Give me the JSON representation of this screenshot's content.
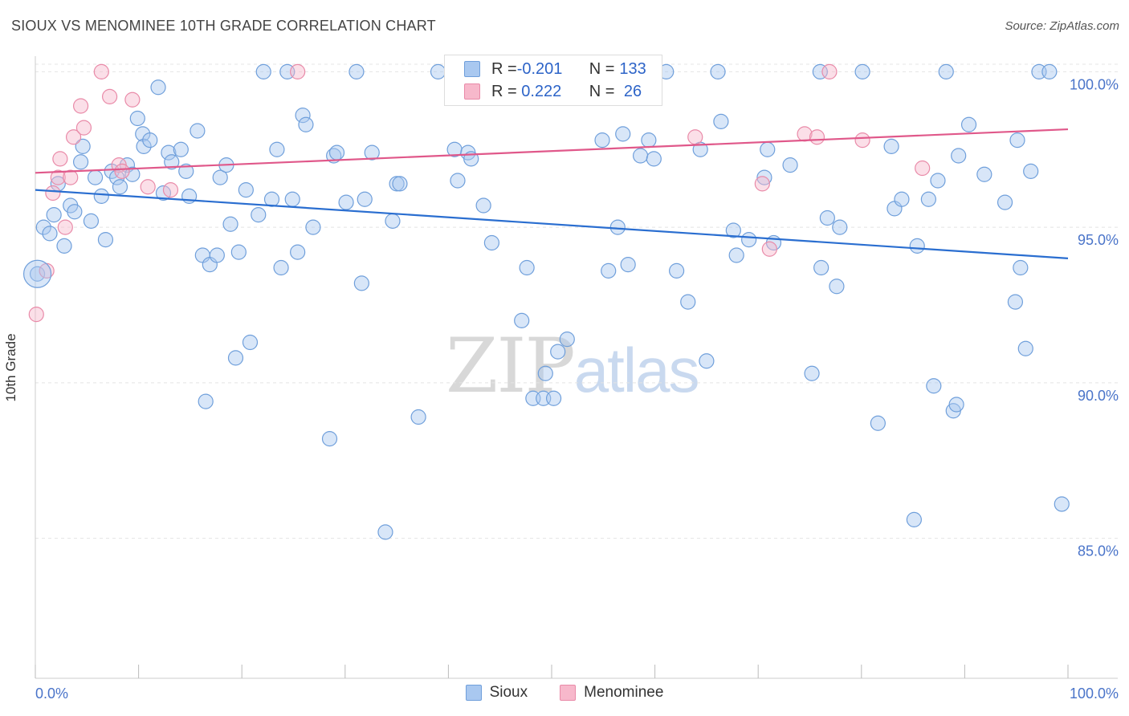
{
  "header": {
    "title": "SIOUX VS MENOMINEE 10TH GRADE CORRELATION CHART",
    "source": "Source: ZipAtlas.com"
  },
  "watermark": {
    "zip": "ZIP",
    "atlas": "atlas"
  },
  "legend": {
    "rows": [
      {
        "r_label": "R = ",
        "r_value": "-0.201",
        "n_label": "N = ",
        "n_value": "133",
        "color": "#a9c8f0"
      },
      {
        "r_label": "R = ",
        "r_value": " 0.222",
        "n_label": "N = ",
        "n_value": " 26",
        "color": "#f7b8cb"
      }
    ]
  },
  "colors": {
    "sioux_fill": "#a9c8f0",
    "sioux_stroke": "#6f9fdb",
    "sioux_line": "#2a6ed0",
    "menominee_fill": "#f7b8cb",
    "menominee_stroke": "#e98aa8",
    "menominee_line": "#e0588a",
    "axis_text": "#4a74c9",
    "grid": "#e4e4e4"
  },
  "chart_data": {
    "type": "scatter",
    "title": "SIOUX VS MENOMINEE 10TH GRADE CORRELATION CHART",
    "xlabel": "",
    "ylabel": "10th Grade",
    "xlim": [
      0,
      100
    ],
    "ylim": [
      80.5,
      100.5
    ],
    "x_tick_labels": [
      "0.0%",
      "100.0%"
    ],
    "y_ticks": [
      85,
      90,
      95,
      100
    ],
    "y_tick_labels": [
      "85.0%",
      "90.0%",
      "95.0%",
      "100.0%"
    ],
    "grid": true,
    "legend_position": "bottom-center",
    "series": [
      {
        "name": "Sioux",
        "r": -0.201,
        "n": 133,
        "trend": {
          "x": [
            0,
            100
          ],
          "y": [
            96.2,
            94.0
          ]
        },
        "points": [
          [
            0.2,
            93.5
          ],
          [
            0.8,
            95.0
          ],
          [
            1.4,
            94.8
          ],
          [
            1.8,
            95.4
          ],
          [
            2.2,
            96.4
          ],
          [
            2.8,
            94.4
          ],
          [
            3.4,
            95.7
          ],
          [
            3.8,
            95.5
          ],
          [
            4.4,
            97.1
          ],
          [
            4.6,
            97.6
          ],
          [
            5.4,
            95.2
          ],
          [
            5.8,
            96.6
          ],
          [
            6.4,
            96.0
          ],
          [
            6.8,
            94.6
          ],
          [
            7.4,
            96.8
          ],
          [
            7.9,
            96.6
          ],
          [
            8.2,
            96.3
          ],
          [
            8.9,
            97.0
          ],
          [
            9.4,
            96.7
          ],
          [
            9.9,
            98.5
          ],
          [
            10.4,
            98.0
          ],
          [
            10.5,
            97.6
          ],
          [
            11.1,
            97.8
          ],
          [
            11.9,
            99.5
          ],
          [
            12.4,
            96.1
          ],
          [
            12.9,
            97.4
          ],
          [
            13.2,
            97.1
          ],
          [
            14.1,
            97.5
          ],
          [
            14.6,
            96.8
          ],
          [
            14.9,
            96.0
          ],
          [
            15.7,
            98.1
          ],
          [
            16.2,
            94.1
          ],
          [
            16.5,
            89.4
          ],
          [
            16.9,
            93.8
          ],
          [
            17.6,
            94.1
          ],
          [
            17.9,
            96.6
          ],
          [
            18.5,
            97.0
          ],
          [
            18.9,
            95.1
          ],
          [
            19.4,
            90.8
          ],
          [
            19.7,
            94.2
          ],
          [
            20.4,
            96.2
          ],
          [
            20.8,
            91.3
          ],
          [
            21.6,
            95.4
          ],
          [
            22.1,
            100.0
          ],
          [
            22.9,
            95.9
          ],
          [
            23.4,
            97.5
          ],
          [
            23.8,
            93.7
          ],
          [
            24.4,
            100.0
          ],
          [
            24.9,
            95.9
          ],
          [
            25.4,
            94.2
          ],
          [
            25.9,
            98.6
          ],
          [
            26.2,
            98.3
          ],
          [
            26.9,
            95.0
          ],
          [
            28.5,
            88.2
          ],
          [
            28.9,
            97.3
          ],
          [
            29.2,
            97.4
          ],
          [
            30.1,
            95.8
          ],
          [
            31.1,
            100.0
          ],
          [
            31.6,
            93.2
          ],
          [
            31.9,
            95.9
          ],
          [
            32.6,
            97.4
          ],
          [
            33.9,
            85.2
          ],
          [
            34.6,
            95.2
          ],
          [
            35.0,
            96.4
          ],
          [
            35.3,
            96.4
          ],
          [
            37.1,
            88.9
          ],
          [
            40.6,
            97.5
          ],
          [
            40.9,
            96.5
          ],
          [
            41.9,
            97.4
          ],
          [
            42.2,
            97.2
          ],
          [
            43.4,
            95.7
          ],
          [
            43.9,
            100.0
          ],
          [
            44.2,
            94.5
          ],
          [
            45.2,
            100.0
          ],
          [
            46.2,
            100.0
          ],
          [
            47.1,
            92.0
          ],
          [
            47.6,
            93.7
          ],
          [
            47.9,
            100.0
          ],
          [
            48.2,
            89.5
          ],
          [
            49.2,
            89.5
          ],
          [
            49.4,
            90.3
          ],
          [
            50.2,
            89.5
          ],
          [
            50.6,
            91.0
          ],
          [
            51.5,
            91.4
          ],
          [
            54.9,
            97.8
          ],
          [
            55.5,
            93.6
          ],
          [
            56.4,
            95.0
          ],
          [
            56.9,
            98.0
          ],
          [
            57.4,
            93.8
          ],
          [
            58.6,
            97.3
          ],
          [
            59.4,
            97.8
          ],
          [
            59.9,
            97.2
          ],
          [
            61.1,
            100.0
          ],
          [
            62.1,
            93.6
          ],
          [
            63.2,
            92.6
          ],
          [
            64.4,
            97.5
          ],
          [
            65.0,
            90.7
          ],
          [
            66.1,
            100.0
          ],
          [
            66.4,
            98.4
          ],
          [
            67.6,
            94.9
          ],
          [
            67.9,
            94.1
          ],
          [
            69.1,
            94.6
          ],
          [
            70.6,
            96.6
          ],
          [
            70.9,
            97.5
          ],
          [
            71.5,
            94.5
          ],
          [
            73.1,
            97.0
          ],
          [
            75.2,
            90.3
          ],
          [
            76.1,
            93.7
          ],
          [
            76.7,
            95.3
          ],
          [
            77.6,
            93.1
          ],
          [
            77.9,
            95.0
          ],
          [
            80.1,
            100.0
          ],
          [
            81.6,
            88.7
          ],
          [
            82.9,
            97.6
          ],
          [
            83.2,
            95.6
          ],
          [
            83.9,
            95.9
          ],
          [
            85.1,
            85.6
          ],
          [
            85.4,
            94.4
          ],
          [
            86.5,
            95.9
          ],
          [
            87.0,
            89.9
          ],
          [
            87.4,
            96.5
          ],
          [
            88.2,
            100.0
          ],
          [
            88.9,
            89.1
          ],
          [
            89.2,
            89.3
          ],
          [
            89.4,
            97.3
          ],
          [
            90.4,
            98.3
          ],
          [
            91.9,
            96.7
          ],
          [
            93.9,
            95.8
          ],
          [
            94.9,
            92.6
          ],
          [
            95.1,
            97.8
          ],
          [
            95.4,
            93.7
          ],
          [
            95.9,
            91.1
          ],
          [
            96.4,
            96.8
          ],
          [
            97.2,
            100.0
          ],
          [
            98.2,
            100.0
          ],
          [
            99.4,
            86.1
          ],
          [
            50.8,
            100.0
          ],
          [
            39.0,
            100.0
          ],
          [
            76.0,
            100.0
          ]
        ]
      },
      {
        "name": "Menominee",
        "r": 0.222,
        "n": 26,
        "trend": {
          "x": [
            0,
            100
          ],
          "y": [
            96.75,
            98.15
          ]
        },
        "points": [
          [
            0.1,
            92.2
          ],
          [
            1.1,
            93.6
          ],
          [
            1.7,
            96.1
          ],
          [
            2.2,
            96.6
          ],
          [
            2.4,
            97.2
          ],
          [
            2.9,
            95.0
          ],
          [
            3.4,
            96.6
          ],
          [
            3.7,
            97.9
          ],
          [
            4.4,
            98.9
          ],
          [
            4.7,
            98.2
          ],
          [
            6.4,
            100.0
          ],
          [
            7.2,
            99.2
          ],
          [
            8.1,
            97.0
          ],
          [
            8.4,
            96.8
          ],
          [
            9.4,
            99.1
          ],
          [
            10.9,
            96.3
          ],
          [
            13.1,
            96.2
          ],
          [
            25.4,
            100.0
          ],
          [
            63.9,
            97.9
          ],
          [
            70.4,
            96.4
          ],
          [
            71.1,
            94.3
          ],
          [
            74.5,
            98.0
          ],
          [
            75.7,
            97.9
          ],
          [
            76.9,
            100.0
          ],
          [
            80.1,
            97.8
          ],
          [
            85.9,
            96.9
          ]
        ]
      }
    ]
  },
  "axis": {
    "x_left": "0.0%",
    "x_right": "100.0%"
  },
  "bottom_legend": [
    "Sioux",
    "Menominee"
  ]
}
